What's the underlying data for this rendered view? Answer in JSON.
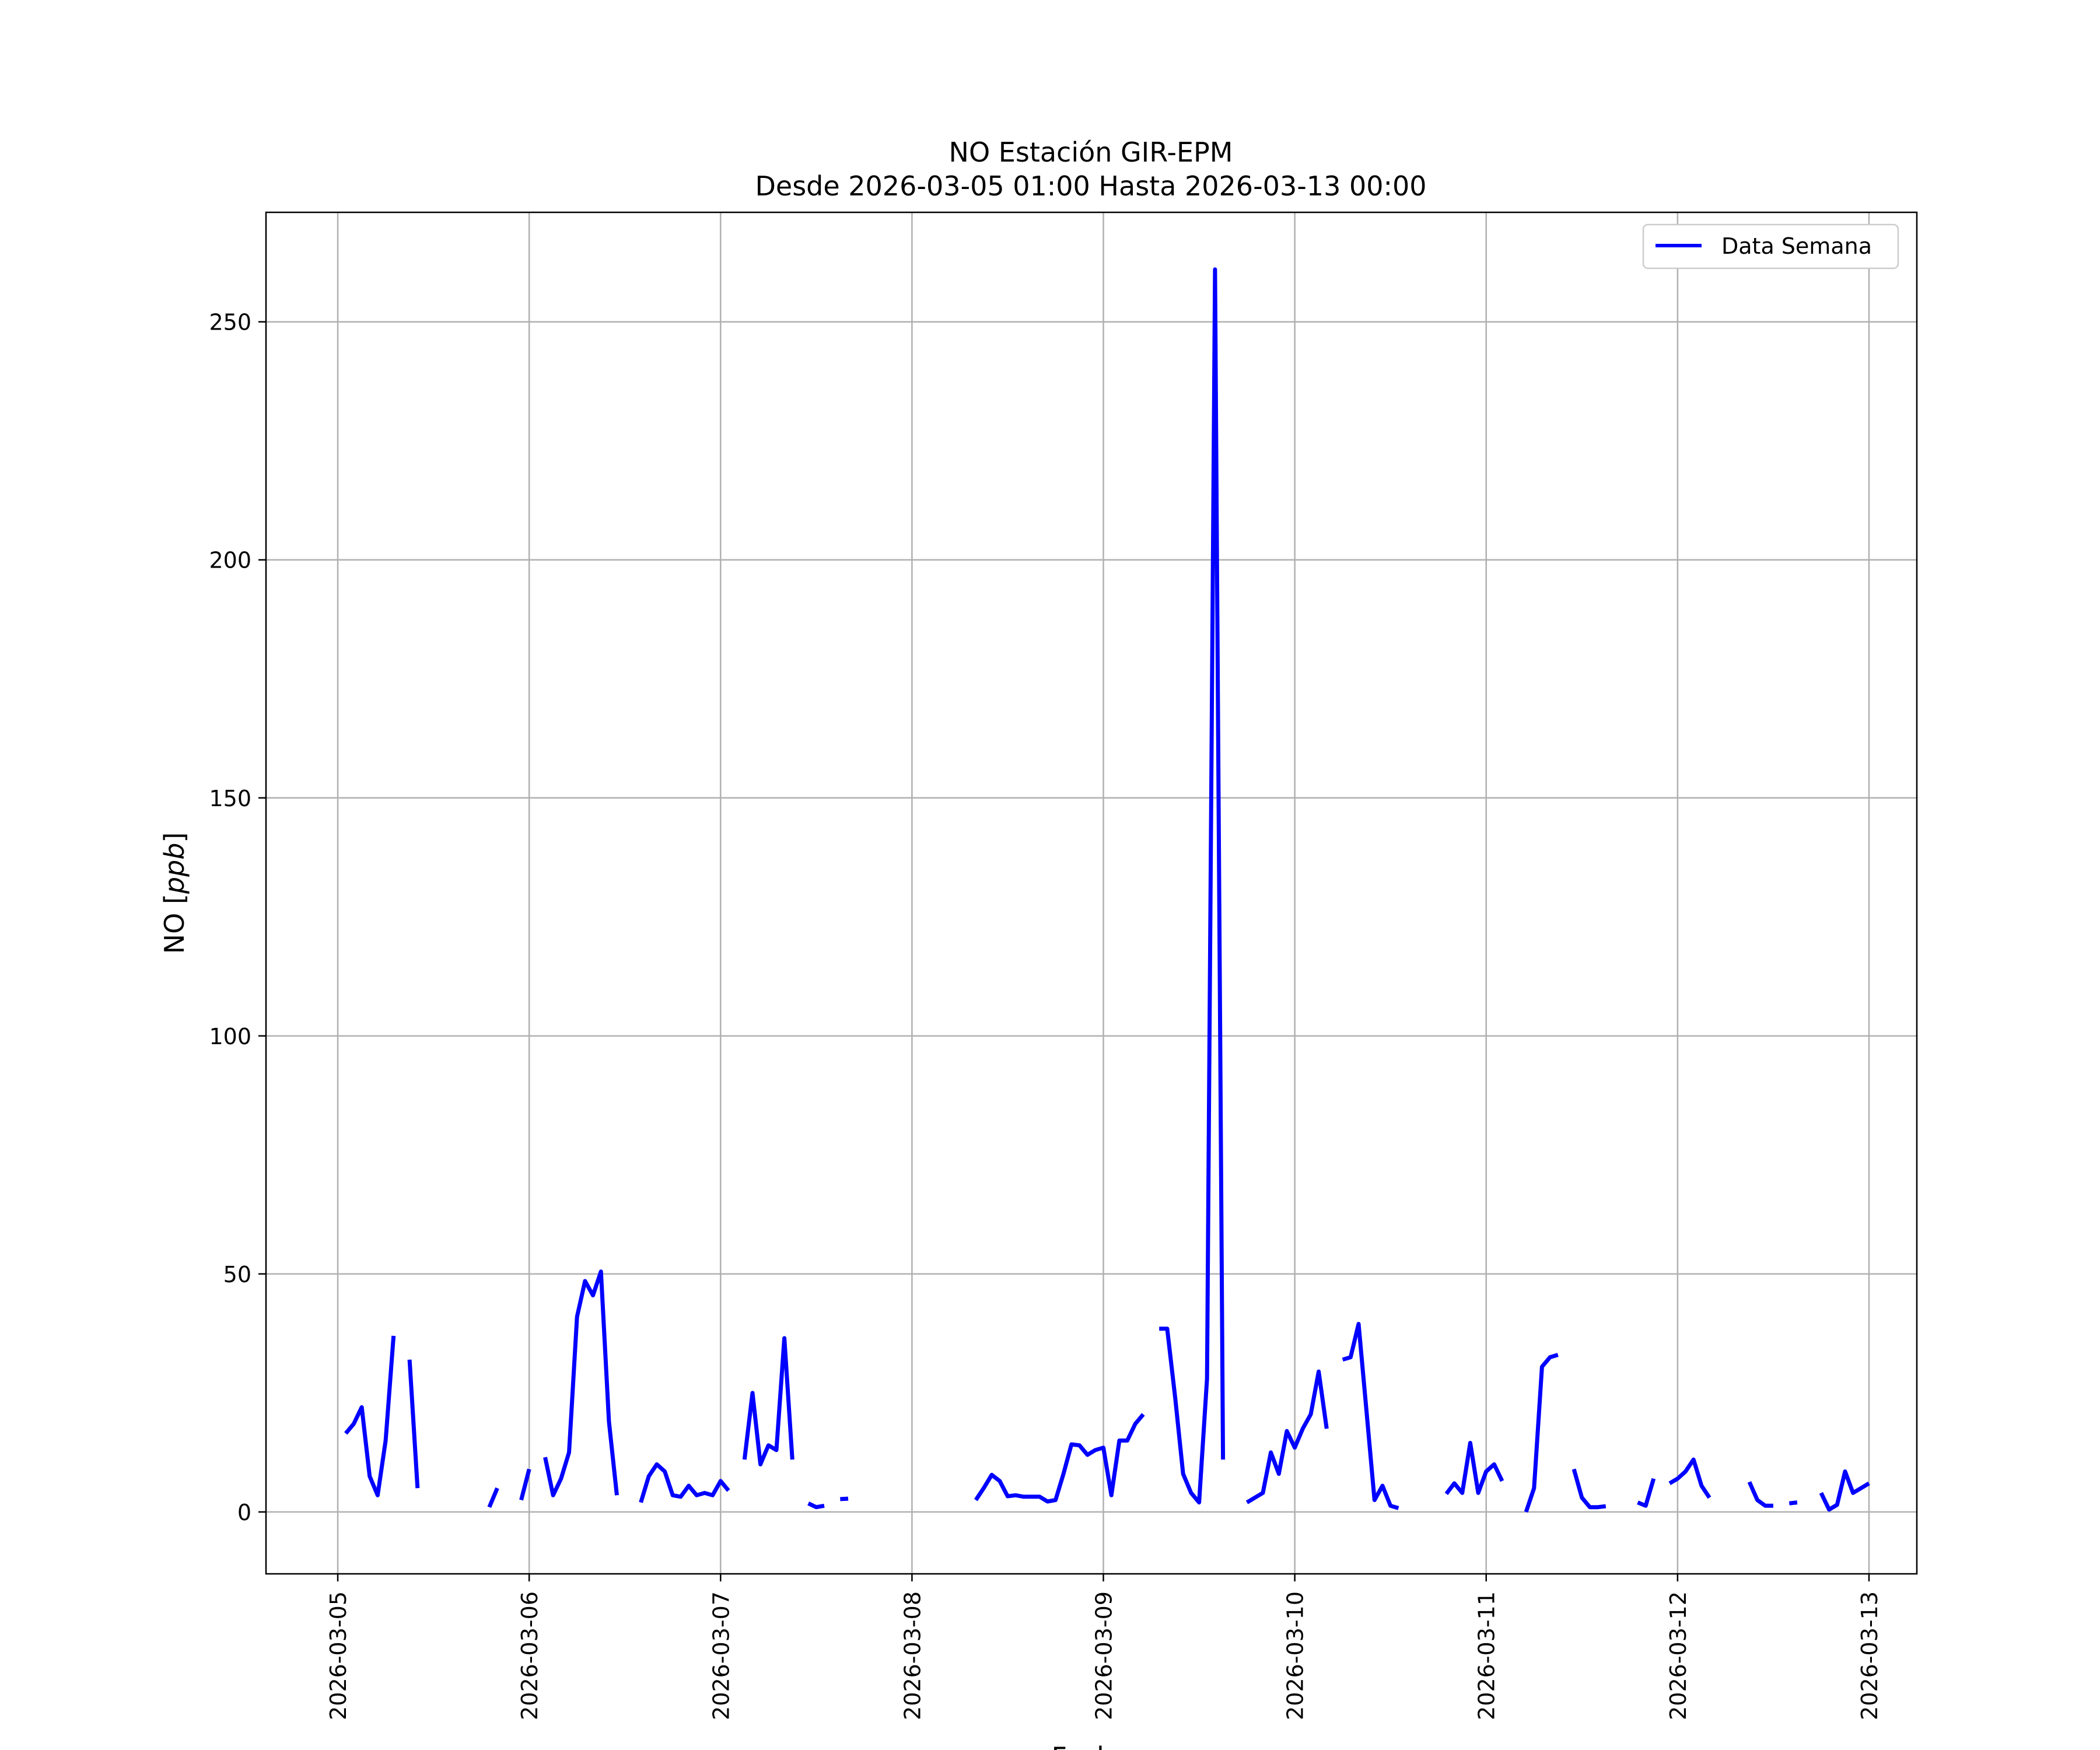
{
  "chart_data": {
    "type": "line",
    "title": "NO Estación GIR-EPM",
    "subtitle": "Desde 2026-03-05 01:00 Hasta 2026-03-13 00:00",
    "xlabel": "Fecha",
    "ylabel": "NO [ppb]",
    "ylabel_prefix": "NO [",
    "ylabel_unit": "ppb",
    "ylabel_suffix": "]",
    "x_start": "2026-03-05 00:00",
    "x_range": [
      "2026-03-04 15:00",
      "2026-03-13 06:00"
    ],
    "ylim": [
      -13,
      273
    ],
    "grid": true,
    "legend_position": "top-right",
    "x_ticks": [
      "2026-03-05",
      "2026-03-06",
      "2026-03-07",
      "2026-03-08",
      "2026-03-09",
      "2026-03-10",
      "2026-03-11",
      "2026-03-12",
      "2026-03-13"
    ],
    "y_ticks": [
      0,
      50,
      100,
      150,
      200,
      250
    ],
    "series": [
      {
        "name": "Data Semana",
        "color": "#0000ff",
        "segments": [
          [
            [
              "2026-03-05 01:00",
              16.5
            ],
            [
              "2026-03-05 02:00",
              18.5
            ],
            [
              "2026-03-05 03:00",
              22
            ],
            [
              "2026-03-05 04:00",
              7.5
            ],
            [
              "2026-03-05 05:00",
              3.5
            ],
            [
              "2026-03-05 06:00",
              15
            ],
            [
              "2026-03-05 07:00",
              37
            ]
          ],
          [
            [
              "2026-03-05 09:00",
              32
            ],
            [
              "2026-03-05 10:00",
              5
            ]
          ],
          [
            [
              "2026-03-05 19:00",
              1
            ],
            [
              "2026-03-05 20:00",
              5
            ]
          ],
          [
            [
              "2026-03-05 23:00",
              2.5
            ],
            [
              "2026-03-06 00:00",
              9
            ]
          ],
          [
            [
              "2026-03-06 02:00",
              11.5
            ],
            [
              "2026-03-06 03:00",
              3.5
            ],
            [
              "2026-03-06 04:00",
              7
            ],
            [
              "2026-03-06 05:00",
              12.5
            ],
            [
              "2026-03-06 06:00",
              41
            ],
            [
              "2026-03-06 07:00",
              48.5
            ],
            [
              "2026-03-06 08:00",
              45.5
            ],
            [
              "2026-03-06 09:00",
              50.5
            ],
            [
              "2026-03-06 10:00",
              19
            ],
            [
              "2026-03-06 11:00",
              3.5
            ]
          ],
          [
            [
              "2026-03-06 14:00",
              2
            ],
            [
              "2026-03-06 15:00",
              7.5
            ],
            [
              "2026-03-06 16:00",
              10
            ],
            [
              "2026-03-06 17:00",
              8.5
            ],
            [
              "2026-03-06 18:00",
              3.5
            ],
            [
              "2026-03-06 19:00",
              3.2
            ],
            [
              "2026-03-06 20:00",
              5.5
            ],
            [
              "2026-03-06 21:00",
              3.5
            ],
            [
              "2026-03-06 22:00",
              4
            ],
            [
              "2026-03-06 23:00",
              3.5
            ],
            [
              "2026-03-07 00:00",
              6.5
            ],
            [
              "2026-03-07 01:00",
              4.5
            ]
          ],
          [
            [
              "2026-03-07 03:00",
              11
            ],
            [
              "2026-03-07 04:00",
              25
            ],
            [
              "2026-03-07 05:00",
              10
            ],
            [
              "2026-03-07 06:00",
              14
            ],
            [
              "2026-03-07 07:00",
              13
            ],
            [
              "2026-03-07 08:00",
              36.5
            ],
            [
              "2026-03-07 09:00",
              11
            ]
          ],
          [
            [
              "2026-03-07 11:00",
              1.8
            ],
            [
              "2026-03-07 12:00",
              1
            ],
            [
              "2026-03-07 13:00",
              1.3
            ]
          ],
          [
            [
              "2026-03-07 15:00",
              2.7
            ],
            [
              "2026-03-07 16:00",
              2.8
            ]
          ],
          [
            [
              "2026-03-08 08:00",
              2.5
            ],
            [
              "2026-03-08 09:00",
              5
            ],
            [
              "2026-03-08 10:00",
              7.8
            ],
            [
              "2026-03-08 11:00",
              6.5
            ],
            [
              "2026-03-08 12:00",
              3.3
            ],
            [
              "2026-03-08 13:00",
              3.5
            ],
            [
              "2026-03-08 14:00",
              3.2
            ],
            [
              "2026-03-08 15:00",
              3.2
            ],
            [
              "2026-03-08 16:00",
              3.2
            ],
            [
              "2026-03-08 17:00",
              2.2
            ],
            [
              "2026-03-08 18:00",
              2.5
            ],
            [
              "2026-03-08 19:00",
              8
            ],
            [
              "2026-03-08 20:00",
              14.2
            ],
            [
              "2026-03-08 21:00",
              14
            ],
            [
              "2026-03-08 22:00",
              12
            ],
            [
              "2026-03-08 23:00",
              13
            ],
            [
              "2026-03-09 00:00",
              13.5
            ],
            [
              "2026-03-09 01:00",
              3.5
            ],
            [
              "2026-03-09 02:00",
              15
            ],
            [
              "2026-03-09 03:00",
              15
            ],
            [
              "2026-03-09 04:00",
              18.5
            ],
            [
              "2026-03-09 05:00",
              20.5
            ]
          ],
          [
            [
              "2026-03-09 07:00",
              38.5
            ],
            [
              "2026-03-09 08:00",
              38.5
            ],
            [
              "2026-03-09 09:00",
              24
            ],
            [
              "2026-03-09 10:00",
              8
            ],
            [
              "2026-03-09 11:00",
              4
            ],
            [
              "2026-03-09 12:00",
              2
            ],
            [
              "2026-03-09 13:00",
              28
            ],
            [
              "2026-03-09 14:00",
              261
            ],
            [
              "2026-03-09 15:00",
              11
            ]
          ],
          [
            [
              "2026-03-09 18:00",
              2
            ],
            [
              "2026-03-09 19:00",
              3
            ],
            [
              "2026-03-09 20:00",
              4
            ],
            [
              "2026-03-09 21:00",
              12.5
            ],
            [
              "2026-03-09 22:00",
              8
            ],
            [
              "2026-03-09 23:00",
              17
            ],
            [
              "2026-03-10 00:00",
              13.5
            ],
            [
              "2026-03-10 01:00",
              17.5
            ],
            [
              "2026-03-10 02:00",
              20.5
            ],
            [
              "2026-03-10 03:00",
              29.5
            ],
            [
              "2026-03-10 04:00",
              17.5
            ]
          ],
          [
            [
              "2026-03-10 06:00",
              32
            ],
            [
              "2026-03-10 07:00",
              32.5
            ],
            [
              "2026-03-10 08:00",
              39.5
            ],
            [
              "2026-03-10 09:00",
              21
            ],
            [
              "2026-03-10 10:00",
              2.5
            ],
            [
              "2026-03-10 11:00",
              5.5
            ],
            [
              "2026-03-10 12:00",
              1.3
            ],
            [
              "2026-03-10 13:00",
              0.8
            ]
          ],
          [
            [
              "2026-03-10 19:00",
              3.8
            ],
            [
              "2026-03-10 20:00",
              6
            ],
            [
              "2026-03-10 21:00",
              4
            ],
            [
              "2026-03-10 22:00",
              14.5
            ],
            [
              "2026-03-10 23:00",
              4
            ],
            [
              "2026-03-11 00:00",
              8.5
            ],
            [
              "2026-03-11 01:00",
              10
            ],
            [
              "2026-03-11 02:00",
              6.5
            ]
          ],
          [
            [
              "2026-03-11 05:00",
              0
            ],
            [
              "2026-03-11 06:00",
              5
            ],
            [
              "2026-03-11 07:00",
              30.5
            ],
            [
              "2026-03-11 08:00",
              32.5
            ],
            [
              "2026-03-11 09:00",
              33
            ]
          ],
          [
            [
              "2026-03-11 11:00",
              9
            ],
            [
              "2026-03-11 12:00",
              3
            ],
            [
              "2026-03-11 13:00",
              1
            ],
            [
              "2026-03-11 14:00",
              1
            ],
            [
              "2026-03-11 15:00",
              1.2
            ]
          ],
          [
            [
              "2026-03-11 19:00",
              2
            ],
            [
              "2026-03-11 20:00",
              1.3
            ],
            [
              "2026-03-11 21:00",
              7
            ]
          ],
          [
            [
              "2026-03-11 23:00",
              6
            ],
            [
              "2026-03-12 00:00",
              7
            ],
            [
              "2026-03-12 01:00",
              8.5
            ],
            [
              "2026-03-12 02:00",
              11
            ],
            [
              "2026-03-12 03:00",
              5.5
            ],
            [
              "2026-03-12 04:00",
              3
            ]
          ],
          [
            [
              "2026-03-12 09:00",
              6.3
            ],
            [
              "2026-03-12 10:00",
              2.5
            ],
            [
              "2026-03-12 11:00",
              1.3
            ],
            [
              "2026-03-12 12:00",
              1.3
            ]
          ],
          [
            [
              "2026-03-12 14:00",
              1.8
            ],
            [
              "2026-03-12 15:00",
              2
            ]
          ],
          [
            [
              "2026-03-12 18:00",
              4
            ],
            [
              "2026-03-12 19:00",
              0.5
            ],
            [
              "2026-03-12 20:00",
              1.5
            ],
            [
              "2026-03-12 21:00",
              8.5
            ],
            [
              "2026-03-12 22:00",
              4
            ],
            [
              "2026-03-12 23:00",
              5
            ],
            [
              "2026-03-13 00:00",
              6
            ]
          ]
        ]
      }
    ]
  }
}
